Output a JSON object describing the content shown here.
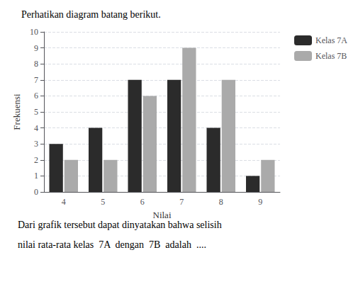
{
  "chart_data": {
    "type": "bar",
    "title": "Perhatikan diagram batang berikut.",
    "annotations": [
      "Dari grafik tersebut dapat dinyatakan bahwa selisih",
      "nilai rata-rata kelas  7A  dengan  7B  adalah  .... "
    ],
    "x_label": "Nilai",
    "y_label": "Frekuensi",
    "categories": [
      "4",
      "5",
      "6",
      "7",
      "8",
      "9"
    ],
    "series": [
      {
        "name": "Kelas 7A",
        "color": "#2b2b2b",
        "values": [
          3,
          4,
          7,
          7,
          4,
          1
        ]
      },
      {
        "name": "Kelas 7B",
        "color": "#aaaaaa",
        "values": [
          2,
          2,
          6,
          9,
          7,
          2
        ]
      }
    ],
    "ylim": [
      0,
      10
    ],
    "yticks": [
      0,
      1,
      2,
      3,
      4,
      5,
      6,
      7,
      8,
      9,
      10
    ],
    "grid": true,
    "legend": "right"
  }
}
